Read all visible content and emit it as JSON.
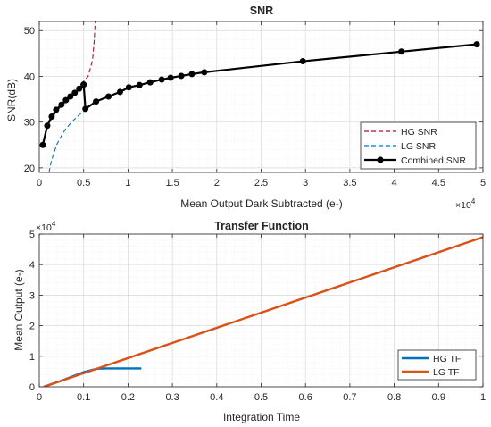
{
  "chart_data": [
    {
      "type": "line",
      "title": "SNR",
      "xlabel": "Mean Output Dark Subtracted (e-)",
      "ylabel": "SNR(dB)",
      "x_multiplier": [
        "×10",
        "4"
      ],
      "xlim": [
        0,
        5
      ],
      "ylim": [
        19,
        52
      ],
      "xticks": [
        0,
        0.5,
        1,
        1.5,
        2,
        2.5,
        3,
        3.5,
        4,
        4.5,
        5
      ],
      "xtick_labels": [
        "0",
        "0.5",
        "1",
        "1.5",
        "2",
        "2.5",
        "3",
        "3.5",
        "4",
        "4.5",
        "5"
      ],
      "yticks": [
        20,
        30,
        40,
        50
      ],
      "ytick_labels": [
        "20",
        "30",
        "40",
        "50"
      ],
      "grid": true,
      "minor_grid": true,
      "legend_position": "bottom-right",
      "series": [
        {
          "name": "HG SNR",
          "color": "#A2142F",
          "style": "dashed",
          "x": [
            0.04,
            0.1,
            0.2,
            0.3,
            0.4,
            0.48,
            0.55,
            0.6,
            0.62,
            0.63
          ],
          "y": [
            25.5,
            29.5,
            32.5,
            34.5,
            36.5,
            38.5,
            40.0,
            43.5,
            48.0,
            52.0
          ]
        },
        {
          "name": "LG SNR",
          "color": "#0072BD",
          "style": "dashed",
          "x": [
            0.11,
            0.13,
            0.16,
            0.2,
            0.25,
            0.3,
            0.38,
            0.45,
            0.52
          ],
          "y": [
            19.0,
            21.0,
            23.0,
            25.2,
            27.0,
            28.6,
            30.3,
            31.6,
            32.6
          ]
        },
        {
          "name": "Combined SNR",
          "color": "#000000",
          "style": "solid",
          "marker": "circle",
          "x": [
            0.04,
            0.09,
            0.14,
            0.19,
            0.25,
            0.3,
            0.35,
            0.4,
            0.45,
            0.5,
            0.5,
            0.52,
            0.64,
            0.78,
            0.91,
            1.01,
            1.13,
            1.25,
            1.38,
            1.48,
            1.6,
            1.72,
            1.86,
            2.97,
            4.08,
            4.93
          ],
          "y": [
            25.0,
            29.2,
            31.2,
            32.7,
            33.8,
            34.8,
            35.6,
            36.4,
            37.3,
            38.2,
            38.2,
            32.9,
            34.5,
            35.6,
            36.6,
            37.6,
            38.1,
            38.7,
            39.3,
            39.7,
            40.1,
            40.5,
            40.9,
            43.3,
            45.4,
            47.0
          ]
        }
      ]
    },
    {
      "type": "line",
      "title": "Transfer Function",
      "xlabel": "Integration Time",
      "ylabel": "Mean Output (e-)",
      "y_multiplier": [
        "×10",
        "4"
      ],
      "xlim": [
        0,
        1
      ],
      "ylim": [
        0,
        5
      ],
      "xticks": [
        0,
        0.1,
        0.2,
        0.3,
        0.4,
        0.5,
        0.6,
        0.7,
        0.8,
        0.9,
        1
      ],
      "xtick_labels": [
        "0",
        "0.1",
        "0.2",
        "0.3",
        "0.4",
        "0.5",
        "0.6",
        "0.7",
        "0.8",
        "0.9",
        "1"
      ],
      "yticks": [
        0,
        1,
        2,
        3,
        4,
        5
      ],
      "ytick_labels": [
        "0",
        "1",
        "2",
        "3",
        "4",
        "5"
      ],
      "grid": true,
      "minor_grid": true,
      "legend_position": "bottom-right",
      "series": [
        {
          "name": "HG TF",
          "color": "#0072BD",
          "style": "solid",
          "x": [
            0.01,
            0.05,
            0.1,
            0.13,
            0.15,
            0.23
          ],
          "y": [
            0.0,
            0.2,
            0.48,
            0.59,
            0.6,
            0.6
          ]
        },
        {
          "name": "LG TF",
          "color": "#D95319",
          "style": "solid",
          "x": [
            0.01,
            1.0
          ],
          "y": [
            0.0,
            4.9
          ]
        }
      ]
    }
  ]
}
